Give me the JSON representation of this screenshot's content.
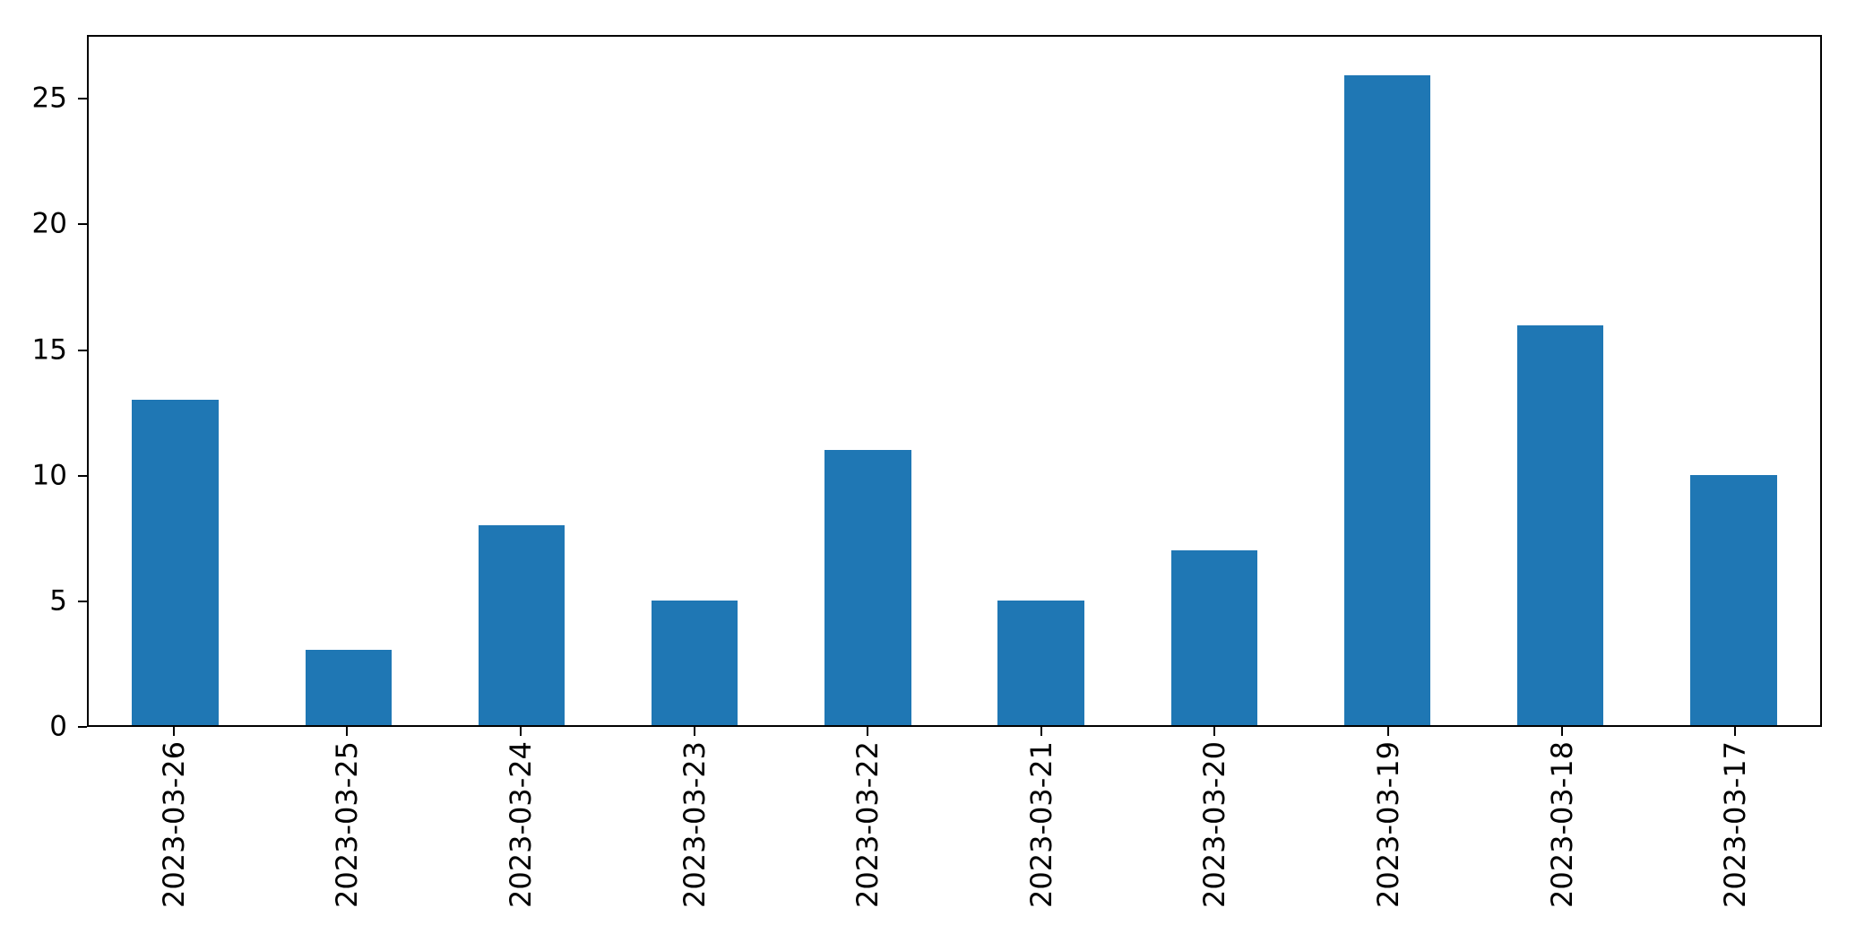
{
  "figure": {
    "background_color": "#ffffff",
    "axis_color": "#000000",
    "text_color": "#000000"
  },
  "chart_data": {
    "type": "bar",
    "title": "",
    "xlabel": "",
    "ylabel": "",
    "categories": [
      "2023-03-26",
      "2023-03-25",
      "2023-03-24",
      "2023-03-23",
      "2023-03-22",
      "2023-03-21",
      "2023-03-20",
      "2023-03-19",
      "2023-03-18",
      "2023-03-17"
    ],
    "values": [
      13,
      3,
      8,
      5,
      11,
      5,
      7,
      26,
      16,
      10
    ],
    "y_ticks": [
      0,
      5,
      10,
      15,
      20,
      25
    ],
    "ylim": [
      0,
      27.54
    ],
    "bar_color": "#1f77b4",
    "bar_width_ratio": 0.5,
    "x_tick_rotation": 90,
    "grid": false,
    "legend": null
  }
}
